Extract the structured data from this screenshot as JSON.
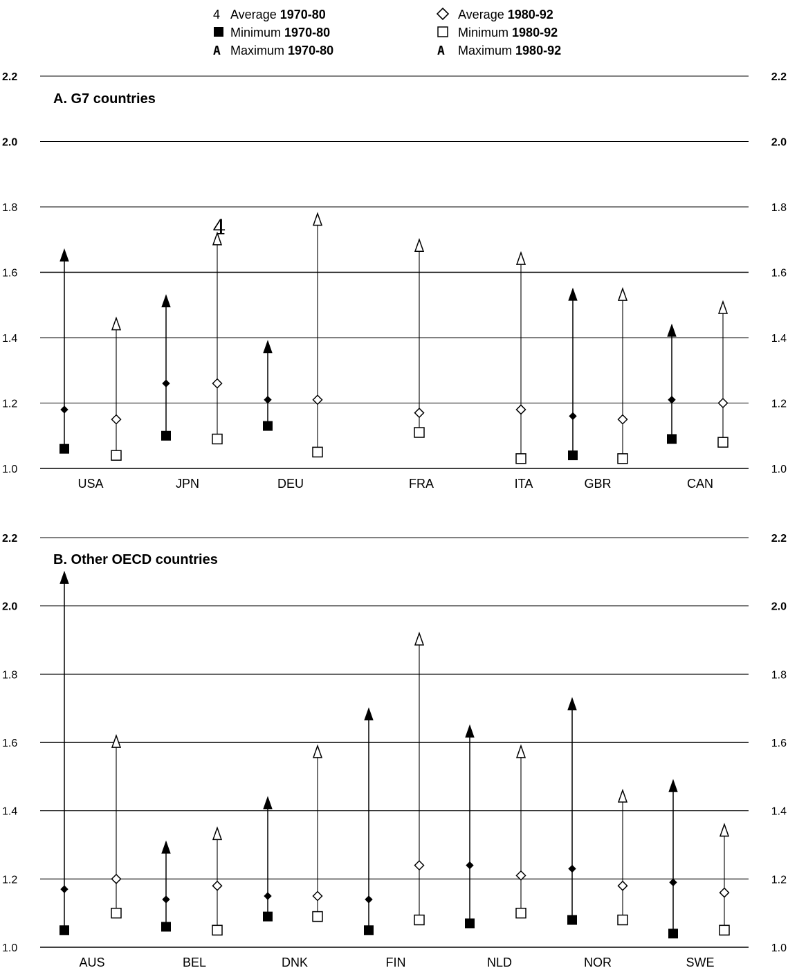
{
  "legend": {
    "items": [
      {
        "symbol": "4",
        "label": "Average",
        "period": "1970-80"
      },
      {
        "symbol": "■",
        "label": "Minimum",
        "period": "1970-80"
      },
      {
        "symbol": "A",
        "label": "Maximum",
        "period": "1970-80"
      },
      {
        "symbol": "◇",
        "label": "Average",
        "period": "1980-92"
      },
      {
        "symbol": "□",
        "label": "Minimum",
        "period": "1980-92"
      },
      {
        "symbol": "A",
        "label": "Maximum",
        "period": "1980-92"
      }
    ]
  },
  "chart_data": [
    {
      "type": "scatter",
      "title": "A.  G7 countries",
      "ylim": [
        1.0,
        2.2
      ],
      "yticks": [
        "1.0",
        "1.2",
        "1.4",
        "1.6",
        "1.8",
        "2.0",
        "2.2"
      ],
      "grid": true,
      "legend_position": "top",
      "categories": [
        "USA",
        "JPN",
        "DEU",
        "FRA",
        "ITA",
        "GBR",
        "CAN"
      ],
      "series": [
        {
          "name": "Average 1970-80",
          "values": [
            1.18,
            1.26,
            1.21,
            null,
            null,
            1.16,
            1.21
          ]
        },
        {
          "name": "Minimum 1970-80",
          "values": [
            1.06,
            1.1,
            1.13,
            null,
            null,
            1.04,
            1.09
          ]
        },
        {
          "name": "Maximum 1970-80",
          "values": [
            1.67,
            1.53,
            1.39,
            null,
            null,
            1.55,
            1.44
          ]
        },
        {
          "name": "Average 1980-92",
          "values": [
            1.15,
            1.26,
            1.21,
            1.17,
            1.18,
            1.15,
            1.2
          ]
        },
        {
          "name": "Minimum 1980-92",
          "values": [
            1.04,
            1.09,
            1.05,
            1.11,
            1.03,
            1.03,
            1.08
          ]
        },
        {
          "name": "Maximum 1980-92",
          "values": [
            1.46,
            1.72,
            1.78,
            1.7,
            1.66,
            1.55,
            1.51
          ]
        }
      ],
      "annotation": "4"
    },
    {
      "type": "scatter",
      "title": "B.  Other OECD countries",
      "ylim": [
        1.0,
        2.2
      ],
      "yticks": [
        "1.0",
        "1.2",
        "1.4",
        "1.6",
        "1.8",
        "2.0",
        "2.2"
      ],
      "grid": true,
      "categories": [
        "AUS",
        "BEL",
        "DNK",
        "FIN",
        "NLD",
        "NOR",
        "SWE"
      ],
      "series": [
        {
          "name": "Average 1970-80",
          "values": [
            1.17,
            1.14,
            1.15,
            1.14,
            1.24,
            1.23,
            1.19
          ]
        },
        {
          "name": "Minimum 1970-80",
          "values": [
            1.05,
            1.06,
            1.09,
            1.05,
            1.07,
            1.08,
            1.04
          ]
        },
        {
          "name": "Maximum 1970-80",
          "values": [
            2.1,
            1.31,
            1.44,
            1.7,
            1.65,
            1.73,
            1.49
          ]
        },
        {
          "name": "Average 1980-92",
          "values": [
            1.2,
            1.18,
            1.15,
            1.24,
            1.21,
            1.18,
            1.16
          ]
        },
        {
          "name": "Minimum 1980-92",
          "values": [
            1.1,
            1.05,
            1.09,
            1.08,
            1.1,
            1.08,
            1.05
          ]
        },
        {
          "name": "Maximum 1980-92",
          "values": [
            1.62,
            1.35,
            1.59,
            1.92,
            1.59,
            1.46,
            1.36
          ]
        }
      ]
    }
  ]
}
